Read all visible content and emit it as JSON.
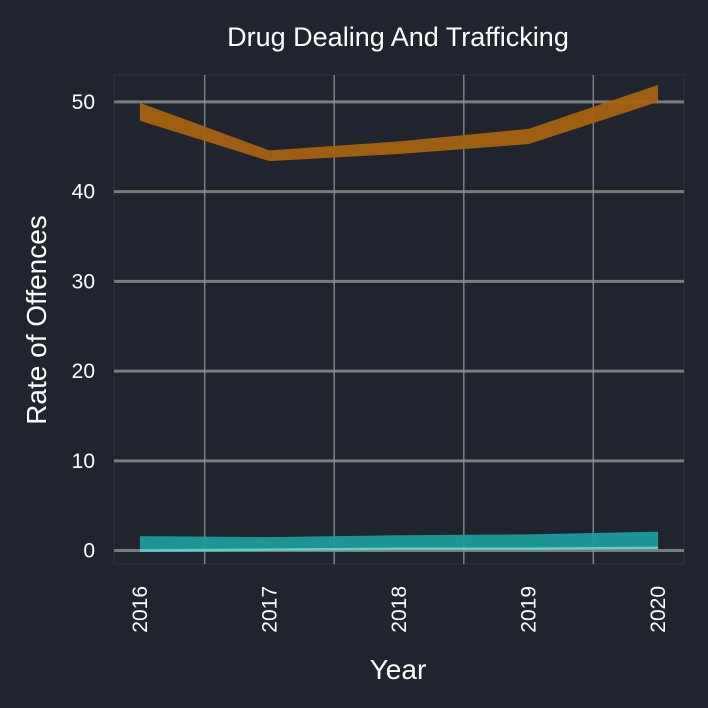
{
  "colors": {
    "background": "#20242f",
    "panel": "#20242f",
    "gridline_y": "#7b7b7b",
    "gridline_x": "#8f8f8f",
    "text": "#ffffff",
    "series_orange": "#a5640f",
    "series_teal": "#1e9c9c",
    "series_teal_light": "#5fd0c8"
  },
  "chart_data": {
    "type": "area",
    "title": "Drug Dealing And Trafficking",
    "xlabel": "Year",
    "ylabel": "Rate of Offences",
    "x": [
      2016,
      2017,
      2018,
      2019,
      2020
    ],
    "x_tick_labels": [
      "2016",
      "2017",
      "2018",
      "2019",
      "2020"
    ],
    "y_ticks": [
      0,
      10,
      20,
      30,
      40,
      50
    ],
    "y_tick_labels": [
      "0",
      "10",
      "20",
      "30",
      "40",
      "50"
    ],
    "xlim": [
      2015.8,
      2020.2
    ],
    "ylim": [
      -1.5,
      53
    ],
    "grid": true,
    "legend": "none",
    "series": [
      {
        "color": "#a5640f",
        "lower": [
          47.9,
          43.4,
          44.2,
          45.3,
          50.0
        ],
        "upper": [
          49.9,
          44.6,
          45.6,
          47.0,
          51.9
        ]
      },
      {
        "color": "#1e9c9c",
        "lower": [
          0.0,
          0.1,
          0.2,
          0.2,
          0.3
        ],
        "upper": [
          1.6,
          1.5,
          1.7,
          1.8,
          2.1
        ]
      }
    ]
  }
}
